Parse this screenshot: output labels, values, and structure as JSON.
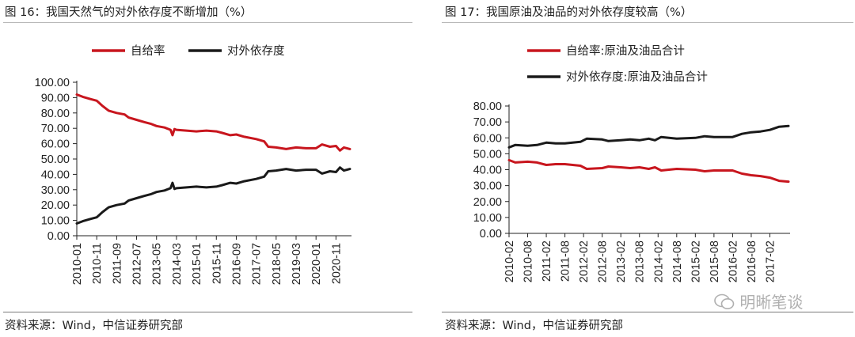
{
  "panels": {
    "left": {
      "title": "图 16：我国天然气的对外依存度不断增加（%）",
      "source": "资料来源：Wind，中信证券研究部"
    },
    "right": {
      "title": "图 17：我国原油及油品的对外依存度较高（%）",
      "source": "资料来源：Wind，中信证券研究部"
    }
  },
  "watermark": "明晰笔谈",
  "chart_data": [
    {
      "type": "line",
      "title": "",
      "ylim": [
        0,
        100
      ],
      "y_ticks": [
        "0.00",
        "10.00",
        "20.00",
        "30.00",
        "40.00",
        "50.00",
        "60.00",
        "70.00",
        "80.00",
        "90.00",
        "100.00"
      ],
      "x_ticks": [
        "2010-01",
        "2010-11",
        "2011-09",
        "2012-07",
        "2013-05",
        "2014-03",
        "2015-01",
        "2015-11",
        "2016-09",
        "2017-07",
        "2018-05",
        "2019-03",
        "2020-01",
        "2020-11"
      ],
      "x_start": "2010-01",
      "x_end": "2021-06",
      "legend_position": "top",
      "series": [
        {
          "name": "自给率",
          "color": "#c8161e",
          "points": [
            [
              "2010-01",
              92.0
            ],
            [
              "2010-04",
              90.5
            ],
            [
              "2010-08",
              89.0
            ],
            [
              "2010-11",
              88.0
            ],
            [
              "2011-02",
              84.5
            ],
            [
              "2011-05",
              81.5
            ],
            [
              "2011-09",
              80.0
            ],
            [
              "2012-01",
              79.0
            ],
            [
              "2012-03",
              77.0
            ],
            [
              "2012-07",
              75.5
            ],
            [
              "2012-11",
              74.0
            ],
            [
              "2013-02",
              73.0
            ],
            [
              "2013-05",
              71.5
            ],
            [
              "2013-09",
              70.5
            ],
            [
              "2013-12",
              69.0
            ],
            [
              "2014-01",
              65.5
            ],
            [
              "2014-02",
              69.5
            ],
            [
              "2014-03",
              69.0
            ],
            [
              "2014-08",
              68.5
            ],
            [
              "2015-01",
              68.0
            ],
            [
              "2015-06",
              68.5
            ],
            [
              "2015-11",
              68.0
            ],
            [
              "2016-02",
              67.0
            ],
            [
              "2016-06",
              65.5
            ],
            [
              "2016-09",
              66.0
            ],
            [
              "2017-01",
              64.5
            ],
            [
              "2017-07",
              63.0
            ],
            [
              "2017-11",
              61.5
            ],
            [
              "2018-01",
              58.0
            ],
            [
              "2018-05",
              57.5
            ],
            [
              "2018-10",
              56.5
            ],
            [
              "2019-03",
              57.5
            ],
            [
              "2019-08",
              57.0
            ],
            [
              "2020-01",
              57.0
            ],
            [
              "2020-04",
              59.5
            ],
            [
              "2020-08",
              58.0
            ],
            [
              "2020-11",
              58.5
            ],
            [
              "2021-01",
              55.5
            ],
            [
              "2021-03",
              57.5
            ],
            [
              "2021-06",
              56.5
            ]
          ]
        },
        {
          "name": "对外依存度",
          "color": "#1a1a1a",
          "points": [
            [
              "2010-01",
              8.0
            ],
            [
              "2010-04",
              9.5
            ],
            [
              "2010-08",
              11.0
            ],
            [
              "2010-11",
              12.0
            ],
            [
              "2011-02",
              15.5
            ],
            [
              "2011-05",
              18.5
            ],
            [
              "2011-09",
              20.0
            ],
            [
              "2012-01",
              21.0
            ],
            [
              "2012-03",
              23.0
            ],
            [
              "2012-07",
              24.5
            ],
            [
              "2012-11",
              26.0
            ],
            [
              "2013-02",
              27.0
            ],
            [
              "2013-05",
              28.5
            ],
            [
              "2013-09",
              29.5
            ],
            [
              "2013-12",
              31.0
            ],
            [
              "2014-01",
              34.5
            ],
            [
              "2014-02",
              30.5
            ],
            [
              "2014-03",
              31.0
            ],
            [
              "2014-08",
              31.5
            ],
            [
              "2015-01",
              32.0
            ],
            [
              "2015-06",
              31.5
            ],
            [
              "2015-11",
              32.0
            ],
            [
              "2016-02",
              33.0
            ],
            [
              "2016-06",
              34.5
            ],
            [
              "2016-09",
              34.0
            ],
            [
              "2017-01",
              35.5
            ],
            [
              "2017-07",
              37.0
            ],
            [
              "2017-11",
              38.5
            ],
            [
              "2018-01",
              42.0
            ],
            [
              "2018-05",
              42.5
            ],
            [
              "2018-10",
              43.5
            ],
            [
              "2019-03",
              42.5
            ],
            [
              "2019-08",
              43.0
            ],
            [
              "2020-01",
              43.0
            ],
            [
              "2020-04",
              40.5
            ],
            [
              "2020-08",
              42.0
            ],
            [
              "2020-11",
              41.5
            ],
            [
              "2021-01",
              44.5
            ],
            [
              "2021-03",
              42.5
            ],
            [
              "2021-06",
              43.5
            ]
          ]
        }
      ]
    },
    {
      "type": "line",
      "title": "",
      "ylim": [
        0,
        80
      ],
      "y_ticks": [
        "0.00",
        "10.00",
        "20.00",
        "30.00",
        "40.00",
        "50.00",
        "60.00",
        "70.00",
        "80.00"
      ],
      "x_ticks": [
        "2010-02",
        "2010-08",
        "2011-02",
        "2011-08",
        "2012-02",
        "2012-08",
        "2013-02",
        "2013-08",
        "2014-02",
        "2014-08",
        "2015-02",
        "2015-08",
        "2016-02",
        "2016-08",
        "2017-02"
      ],
      "x_start": "2010-02",
      "x_end": "2017-08",
      "legend_position": "top",
      "series": [
        {
          "name": "自给率:原油及油品合计",
          "color": "#c8161e",
          "points": [
            [
              "2010-02",
              46.0
            ],
            [
              "2010-04",
              44.5
            ],
            [
              "2010-08",
              45.0
            ],
            [
              "2010-11",
              44.5
            ],
            [
              "2011-02",
              43.0
            ],
            [
              "2011-05",
              43.5
            ],
            [
              "2011-08",
              43.5
            ],
            [
              "2012-01",
              42.5
            ],
            [
              "2012-03",
              40.5
            ],
            [
              "2012-08",
              41.0
            ],
            [
              "2012-10",
              42.0
            ],
            [
              "2013-02",
              41.5
            ],
            [
              "2013-05",
              41.0
            ],
            [
              "2013-08",
              41.5
            ],
            [
              "2013-11",
              40.5
            ],
            [
              "2014-01",
              41.5
            ],
            [
              "2014-03",
              39.5
            ],
            [
              "2014-08",
              40.5
            ],
            [
              "2015-02",
              40.0
            ],
            [
              "2015-05",
              39.0
            ],
            [
              "2015-08",
              39.5
            ],
            [
              "2016-02",
              39.5
            ],
            [
              "2016-05",
              37.5
            ],
            [
              "2016-08",
              36.5
            ],
            [
              "2016-11",
              36.0
            ],
            [
              "2017-02",
              35.0
            ],
            [
              "2017-05",
              33.0
            ],
            [
              "2017-08",
              32.5
            ]
          ]
        },
        {
          "name": "对外依存度:原油及油品合计",
          "color": "#1a1a1a",
          "points": [
            [
              "2010-02",
              54.0
            ],
            [
              "2010-04",
              55.5
            ],
            [
              "2010-08",
              55.0
            ],
            [
              "2010-11",
              55.5
            ],
            [
              "2011-02",
              57.0
            ],
            [
              "2011-05",
              56.5
            ],
            [
              "2011-08",
              56.5
            ],
            [
              "2012-01",
              57.5
            ],
            [
              "2012-03",
              59.5
            ],
            [
              "2012-08",
              59.0
            ],
            [
              "2012-10",
              58.0
            ],
            [
              "2013-02",
              58.5
            ],
            [
              "2013-05",
              59.0
            ],
            [
              "2013-08",
              58.5
            ],
            [
              "2013-11",
              59.5
            ],
            [
              "2014-01",
              58.5
            ],
            [
              "2014-03",
              60.5
            ],
            [
              "2014-08",
              59.5
            ],
            [
              "2015-02",
              60.0
            ],
            [
              "2015-05",
              61.0
            ],
            [
              "2015-08",
              60.5
            ],
            [
              "2016-02",
              60.5
            ],
            [
              "2016-05",
              62.5
            ],
            [
              "2016-08",
              63.5
            ],
            [
              "2016-11",
              64.0
            ],
            [
              "2017-02",
              65.0
            ],
            [
              "2017-05",
              67.0
            ],
            [
              "2017-08",
              67.5
            ]
          ]
        }
      ]
    }
  ]
}
